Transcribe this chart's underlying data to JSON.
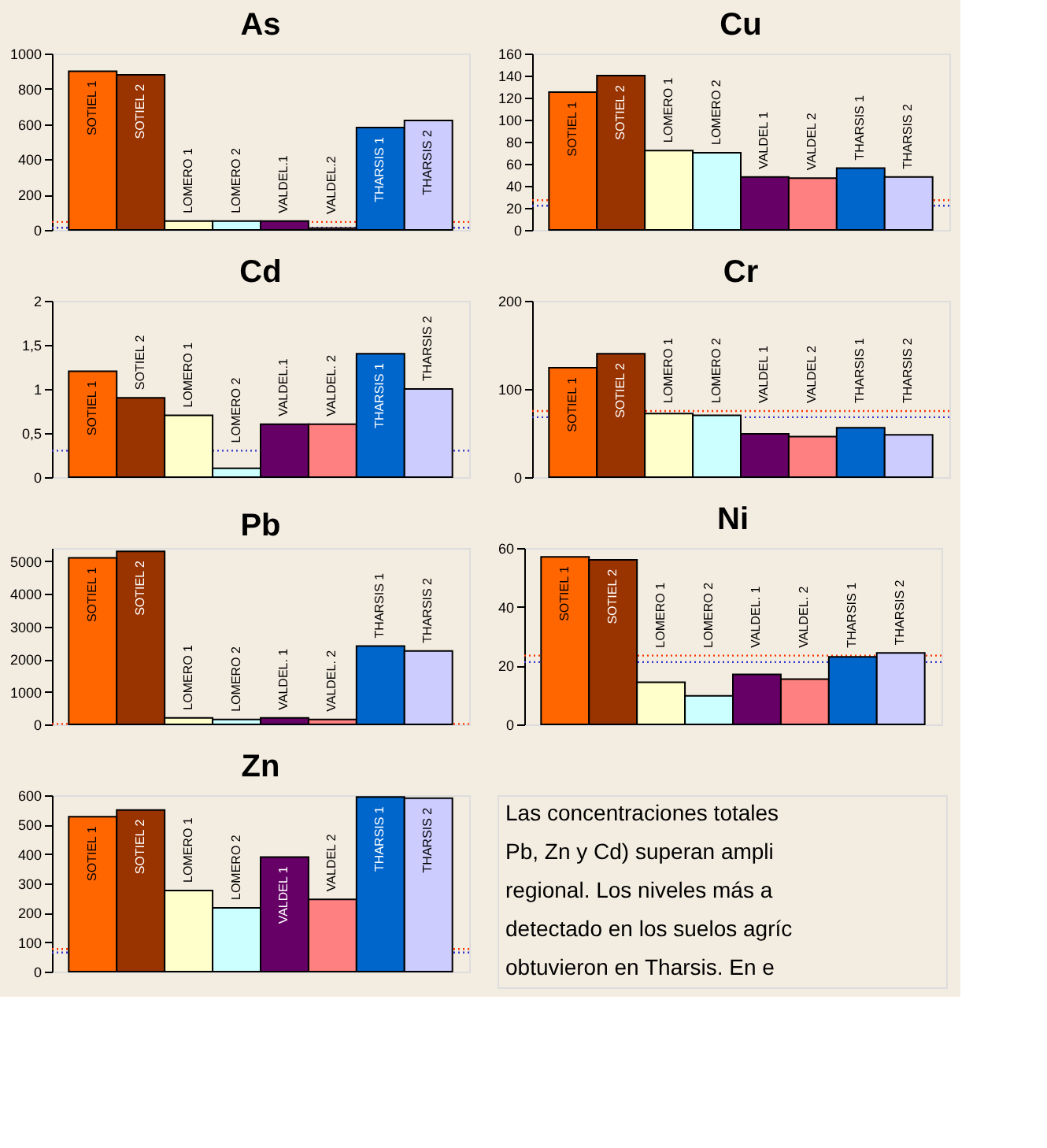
{
  "chart_data": [
    {
      "type": "bar",
      "title": "As",
      "categories": [
        "SOTIEL 1",
        "SOTIEL 2",
        "LOMERO 1",
        "LOMERO 2",
        "VALDEL.1",
        "VALDEL.2",
        "THARSIS 1",
        "THARSIS 2"
      ],
      "values": [
        900,
        880,
        50,
        50,
        50,
        10,
        580,
        620
      ],
      "colors": [
        "#ff6600",
        "#993300",
        "#ffffcc",
        "#ccffff",
        "#660066",
        "#ff8080",
        "#0066cc",
        "#ccccff"
      ],
      "ylim": [
        0,
        1000
      ],
      "yticks": [
        0,
        200,
        400,
        600,
        800,
        1000
      ],
      "tick_labels": "y",
      "ref_lines": [
        {
          "axis": "y",
          "value": 45,
          "color": "#ff3300",
          "line_style": "dotted"
        },
        {
          "axis": "y",
          "value": 12,
          "color": "#3333cc",
          "line_style": "dotted"
        }
      ]
    },
    {
      "type": "bar",
      "title": "Cu",
      "categories": [
        "SOTIEL 1",
        "SOTIEL 2",
        "LOMERO 1",
        "LOMERO 2",
        "VALDEL 1",
        "VALDEL 2",
        "THARSIS 1",
        "THARSIS 2"
      ],
      "values": [
        125,
        140,
        72,
        70,
        48,
        47,
        56,
        48
      ],
      "colors": [
        "#ff6600",
        "#993300",
        "#ffffcc",
        "#ccffff",
        "#660066",
        "#ff8080",
        "#0066cc",
        "#ccccff"
      ],
      "ylim": [
        0,
        160
      ],
      "yticks": [
        0,
        20,
        40,
        60,
        80,
        100,
        120,
        140,
        160
      ],
      "tick_labels": "y",
      "ref_lines": [
        {
          "axis": "y",
          "value": 27,
          "color": "#ff3300",
          "line_style": "dotted"
        },
        {
          "axis": "y",
          "value": 22,
          "color": "#3333cc",
          "line_style": "dotted"
        }
      ]
    },
    {
      "type": "bar",
      "title": "Cd",
      "categories": [
        "SOTIEL 1",
        "SOTIEL 2",
        "LOMERO 1",
        "LOMERO 2",
        "VALDEL.1",
        "VALDEL. 2",
        "THARSIS 1",
        "THARSIS 2"
      ],
      "values": [
        1.2,
        0.9,
        0.7,
        0.1,
        0.6,
        0.6,
        1.4,
        1.0
      ],
      "colors": [
        "#ff6600",
        "#993300",
        "#ffffcc",
        "#ccffff",
        "#660066",
        "#ff8080",
        "#0066cc",
        "#ccccff"
      ],
      "ylim": [
        0,
        2
      ],
      "yticks": [
        0,
        {
          "value": 0.5,
          "label": "0,5"
        },
        1,
        {
          "value": 1.5,
          "label": "1,5"
        },
        2
      ],
      "tick_labels": "y",
      "ref_lines": [
        {
          "axis": "y",
          "value": 0.3,
          "color": "#3333cc",
          "line_style": "dotted"
        }
      ]
    },
    {
      "type": "bar",
      "title": "Cr",
      "categories": [
        "SOTIEL 1",
        "SOTIEL 2",
        "LOMERO 1",
        "LOMERO 2",
        "VALDEL 1",
        "VALDEL 2",
        "THARSIS 1",
        "THARSIS 2"
      ],
      "values": [
        124,
        140,
        72,
        70,
        49,
        46,
        56,
        48
      ],
      "colors": [
        "#ff6600",
        "#993300",
        "#ffffcc",
        "#ccffff",
        "#660066",
        "#ff8080",
        "#0066cc",
        "#ccccff"
      ],
      "ylim": [
        0,
        200
      ],
      "yticks": [
        0,
        100,
        200
      ],
      "tick_labels": "y",
      "ref_lines": [
        {
          "axis": "y",
          "value": 75,
          "color": "#ff3300",
          "line_style": "dotted"
        },
        {
          "axis": "y",
          "value": 68,
          "color": "#3333cc",
          "line_style": "dotted"
        }
      ]
    },
    {
      "type": "bar",
      "title": "Pb",
      "categories": [
        "SOTIEL 1",
        "SOTIEL 2",
        "LOMERO 1",
        "LOMERO 2",
        "VALDEL. 1",
        "VALDEL. 2",
        "THARSIS 1",
        "THARSIS 2"
      ],
      "values": [
        5100,
        5300,
        200,
        150,
        200,
        150,
        2400,
        2250
      ],
      "colors": [
        "#ff6600",
        "#993300",
        "#ffffcc",
        "#ccffff",
        "#660066",
        "#ff8080",
        "#0066cc",
        "#ccccff"
      ],
      "ylim": [
        0,
        5400
      ],
      "yticks": [
        0,
        1000,
        2000,
        3000,
        4000,
        5000
      ],
      "tick_labels": "y",
      "ref_lines": [
        {
          "axis": "y",
          "value": 15,
          "color": "#ff3300",
          "line_style": "dotted"
        }
      ]
    },
    {
      "type": "bar",
      "title": "Ni",
      "categories": [
        "SOTIEL 1",
        "SOTIEL 2",
        "LOMERO 1",
        "LOMERO 2",
        "VALDEL. 1",
        "VALDEL. 2",
        "THARSIS 1",
        "THARSIS 2"
      ],
      "values": [
        57,
        56,
        14.3,
        9.7,
        17,
        15.4,
        23,
        24.3
      ],
      "colors": [
        "#ff6600",
        "#993300",
        "#ffffcc",
        "#ccffff",
        "#660066",
        "#ff8080",
        "#0066cc",
        "#ccccff"
      ],
      "ylim": [
        0,
        60
      ],
      "yticks": [
        0,
        20,
        40,
        60
      ],
      "tick_labels": "y",
      "ref_lines": [
        {
          "axis": "y",
          "value": 23.4,
          "color": "#ff3300",
          "line_style": "dotted"
        },
        {
          "axis": "y",
          "value": 21.2,
          "color": "#3333cc",
          "line_style": "dotted"
        }
      ]
    },
    {
      "type": "bar",
      "title": "Zn",
      "categories": [
        "SOTIEL 1",
        "SOTIEL 2",
        "LOMERO 1",
        "LOMERO 2",
        "VALDEL 1",
        "VALDEL 2",
        "THARSIS 1",
        "THARSIS 2"
      ],
      "values": [
        527,
        550,
        276,
        217,
        390,
        246,
        594,
        590
      ],
      "colors": [
        "#ff6600",
        "#993300",
        "#ffffcc",
        "#ccffff",
        "#660066",
        "#ff8080",
        "#0066cc",
        "#ccccff"
      ],
      "ylim": [
        0,
        600
      ],
      "yticks": [
        0,
        100,
        200,
        300,
        400,
        500,
        600
      ],
      "tick_labels": "y",
      "ref_lines": [
        {
          "axis": "y",
          "value": 77,
          "color": "#ff3300",
          "line_style": "dotted"
        },
        {
          "axis": "y",
          "value": 65,
          "color": "#3333cc",
          "line_style": "dotted"
        }
      ]
    },
    {
      "type": "other",
      "annotations": [
        "Las concentraciones totales",
        "Pb, Zn y Cd) superan ampli",
        "regional. Los niveles más a",
        "detectado en los suelos agríc",
        "obtuvieron en Tharsis. En e"
      ]
    }
  ]
}
